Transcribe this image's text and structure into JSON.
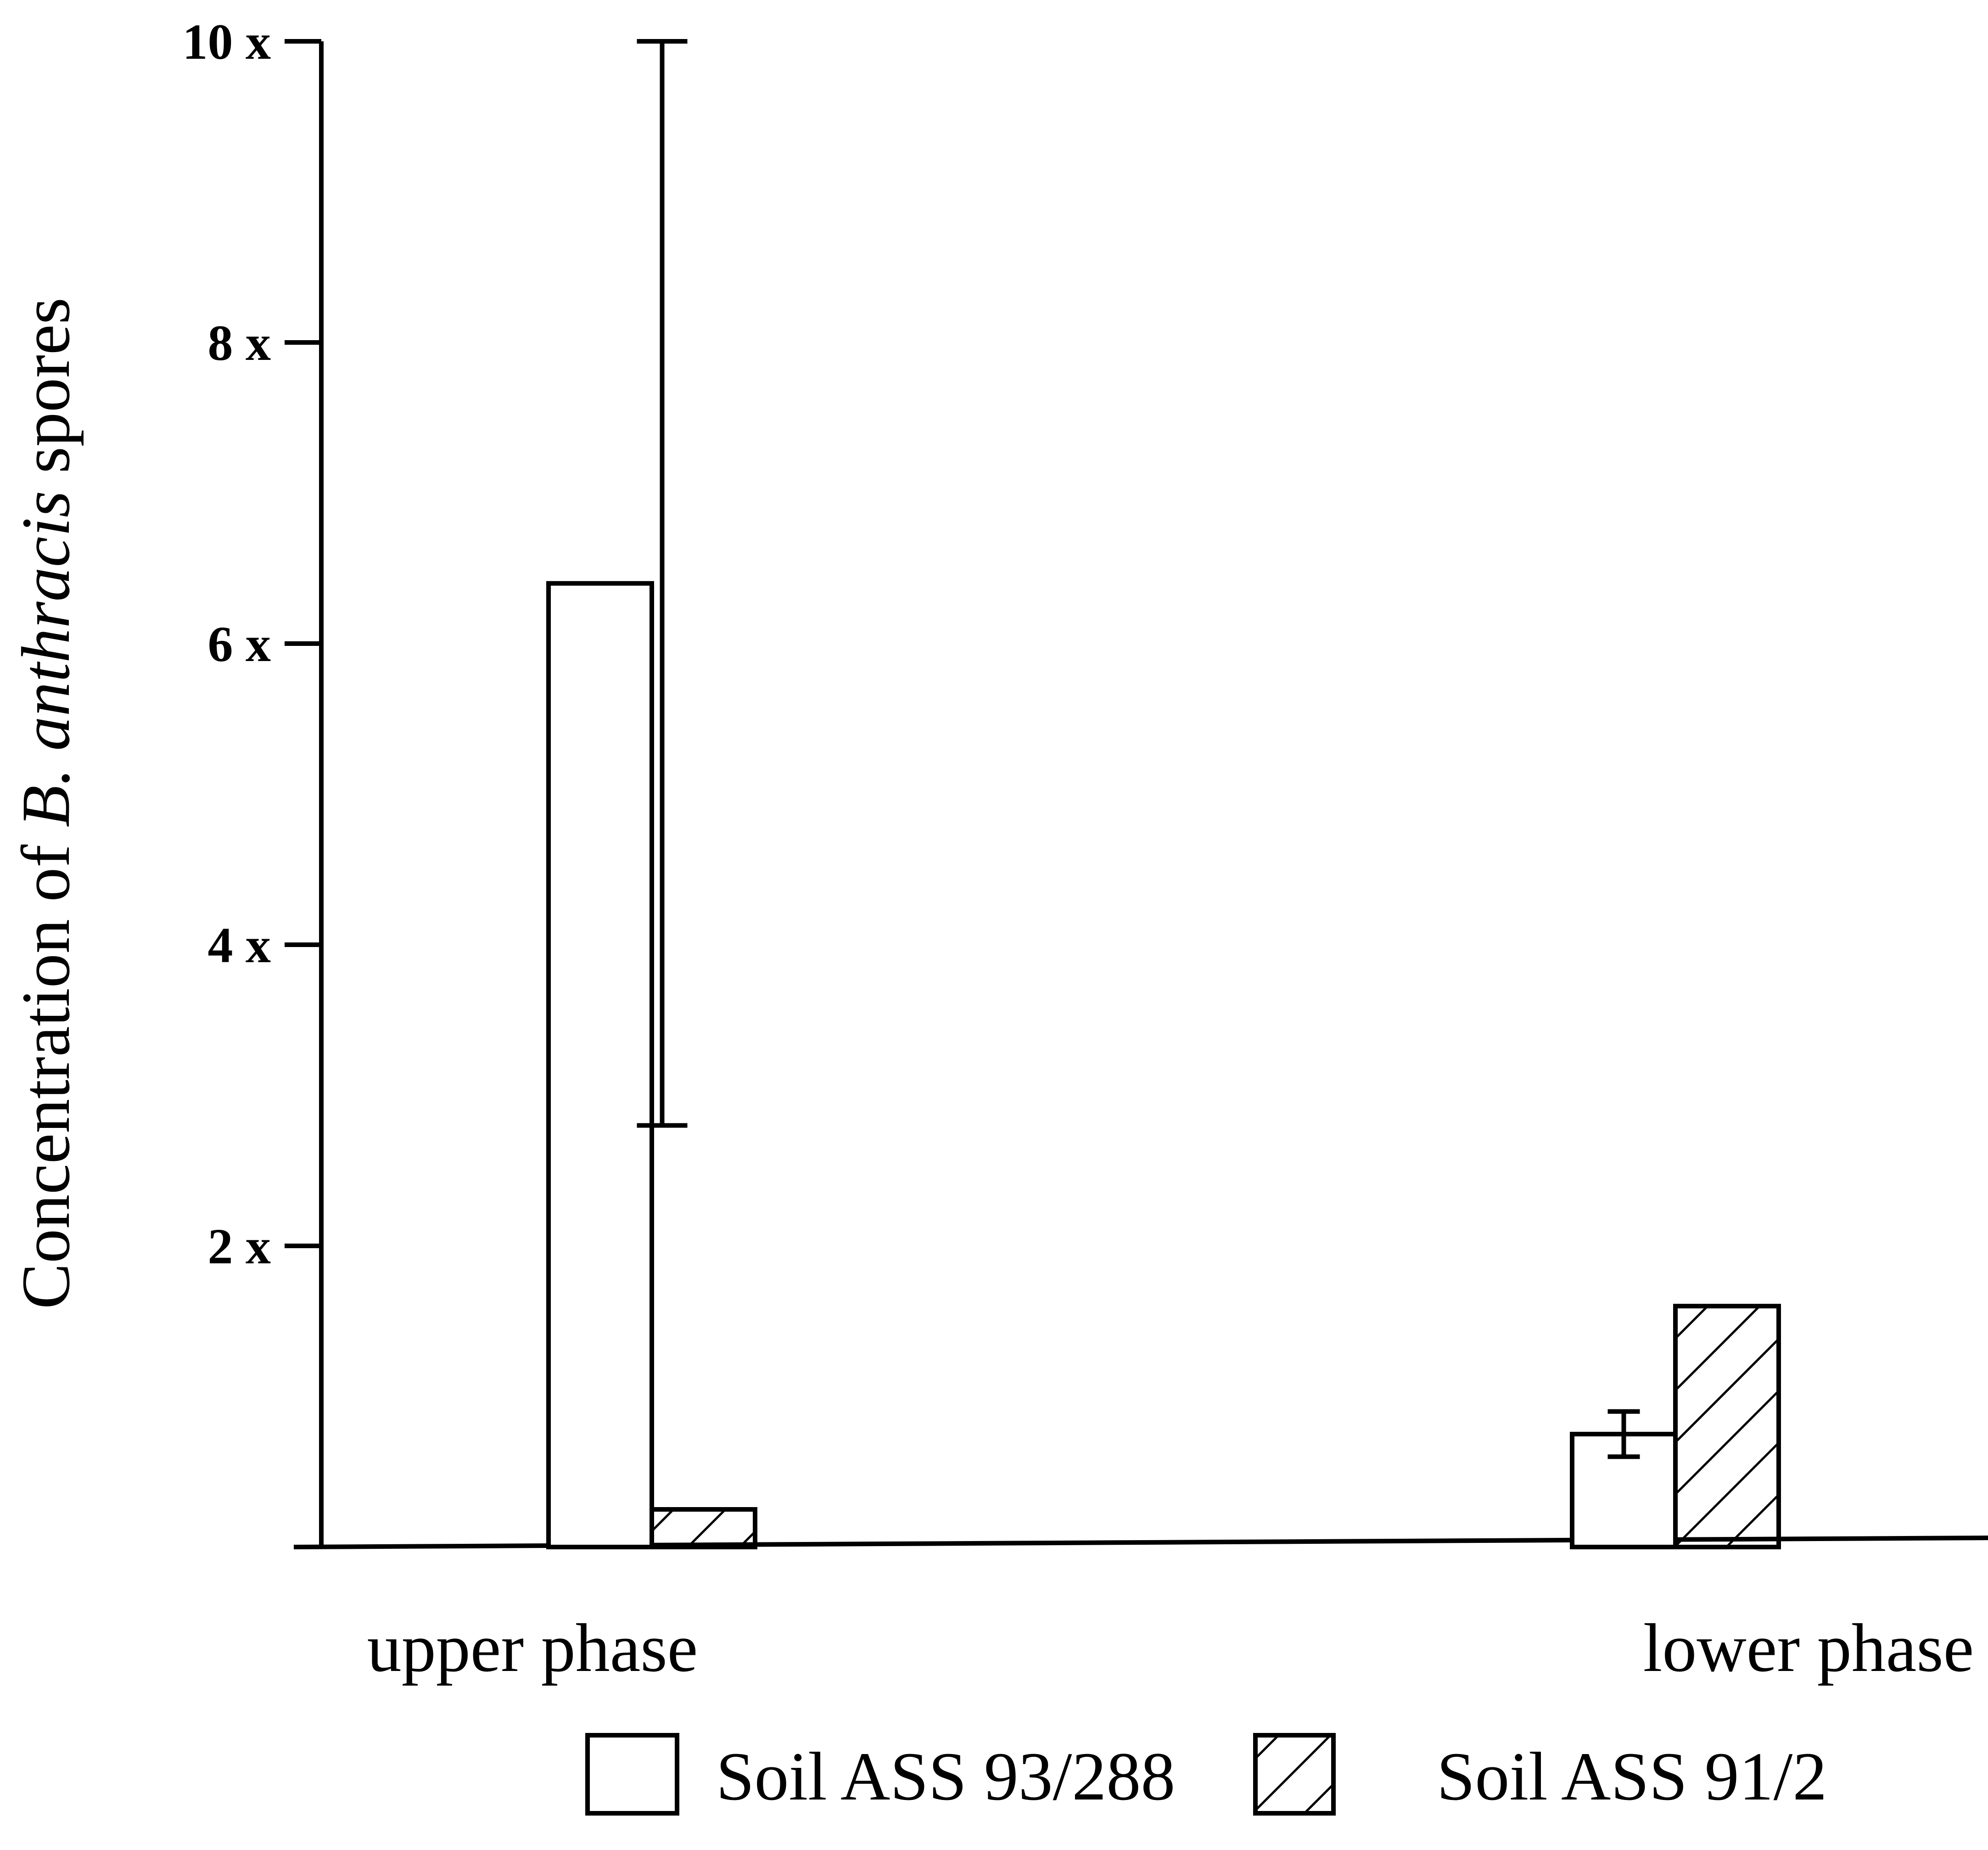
{
  "chart_data": {
    "type": "bar",
    "ylabel_prefix": "Concentration of ",
    "ylabel_italic": "B. anthracis",
    "ylabel_suffix": " spores",
    "ylim": [
      0,
      10
    ],
    "yticks": [
      {
        "value": 2,
        "label": "2 x"
      },
      {
        "value": 4,
        "label": "4 x"
      },
      {
        "value": 6,
        "label": "6 x"
      },
      {
        "value": 8,
        "label": "8 x"
      },
      {
        "value": 10,
        "label": "10 x"
      }
    ],
    "categories": [
      "upper phase",
      "lower phase"
    ],
    "series": [
      {
        "name": "Soil ASS 93/288",
        "pattern": "open",
        "values": [
          6.4,
          0.75
        ],
        "error_low": [
          2.8,
          0.6
        ],
        "error_high": [
          10,
          0.9
        ]
      },
      {
        "name": "Soil ASS 91/2",
        "pattern": "hatched",
        "values": [
          0.25,
          1.6
        ]
      }
    ],
    "grid": false,
    "legend_position": "bottom"
  }
}
